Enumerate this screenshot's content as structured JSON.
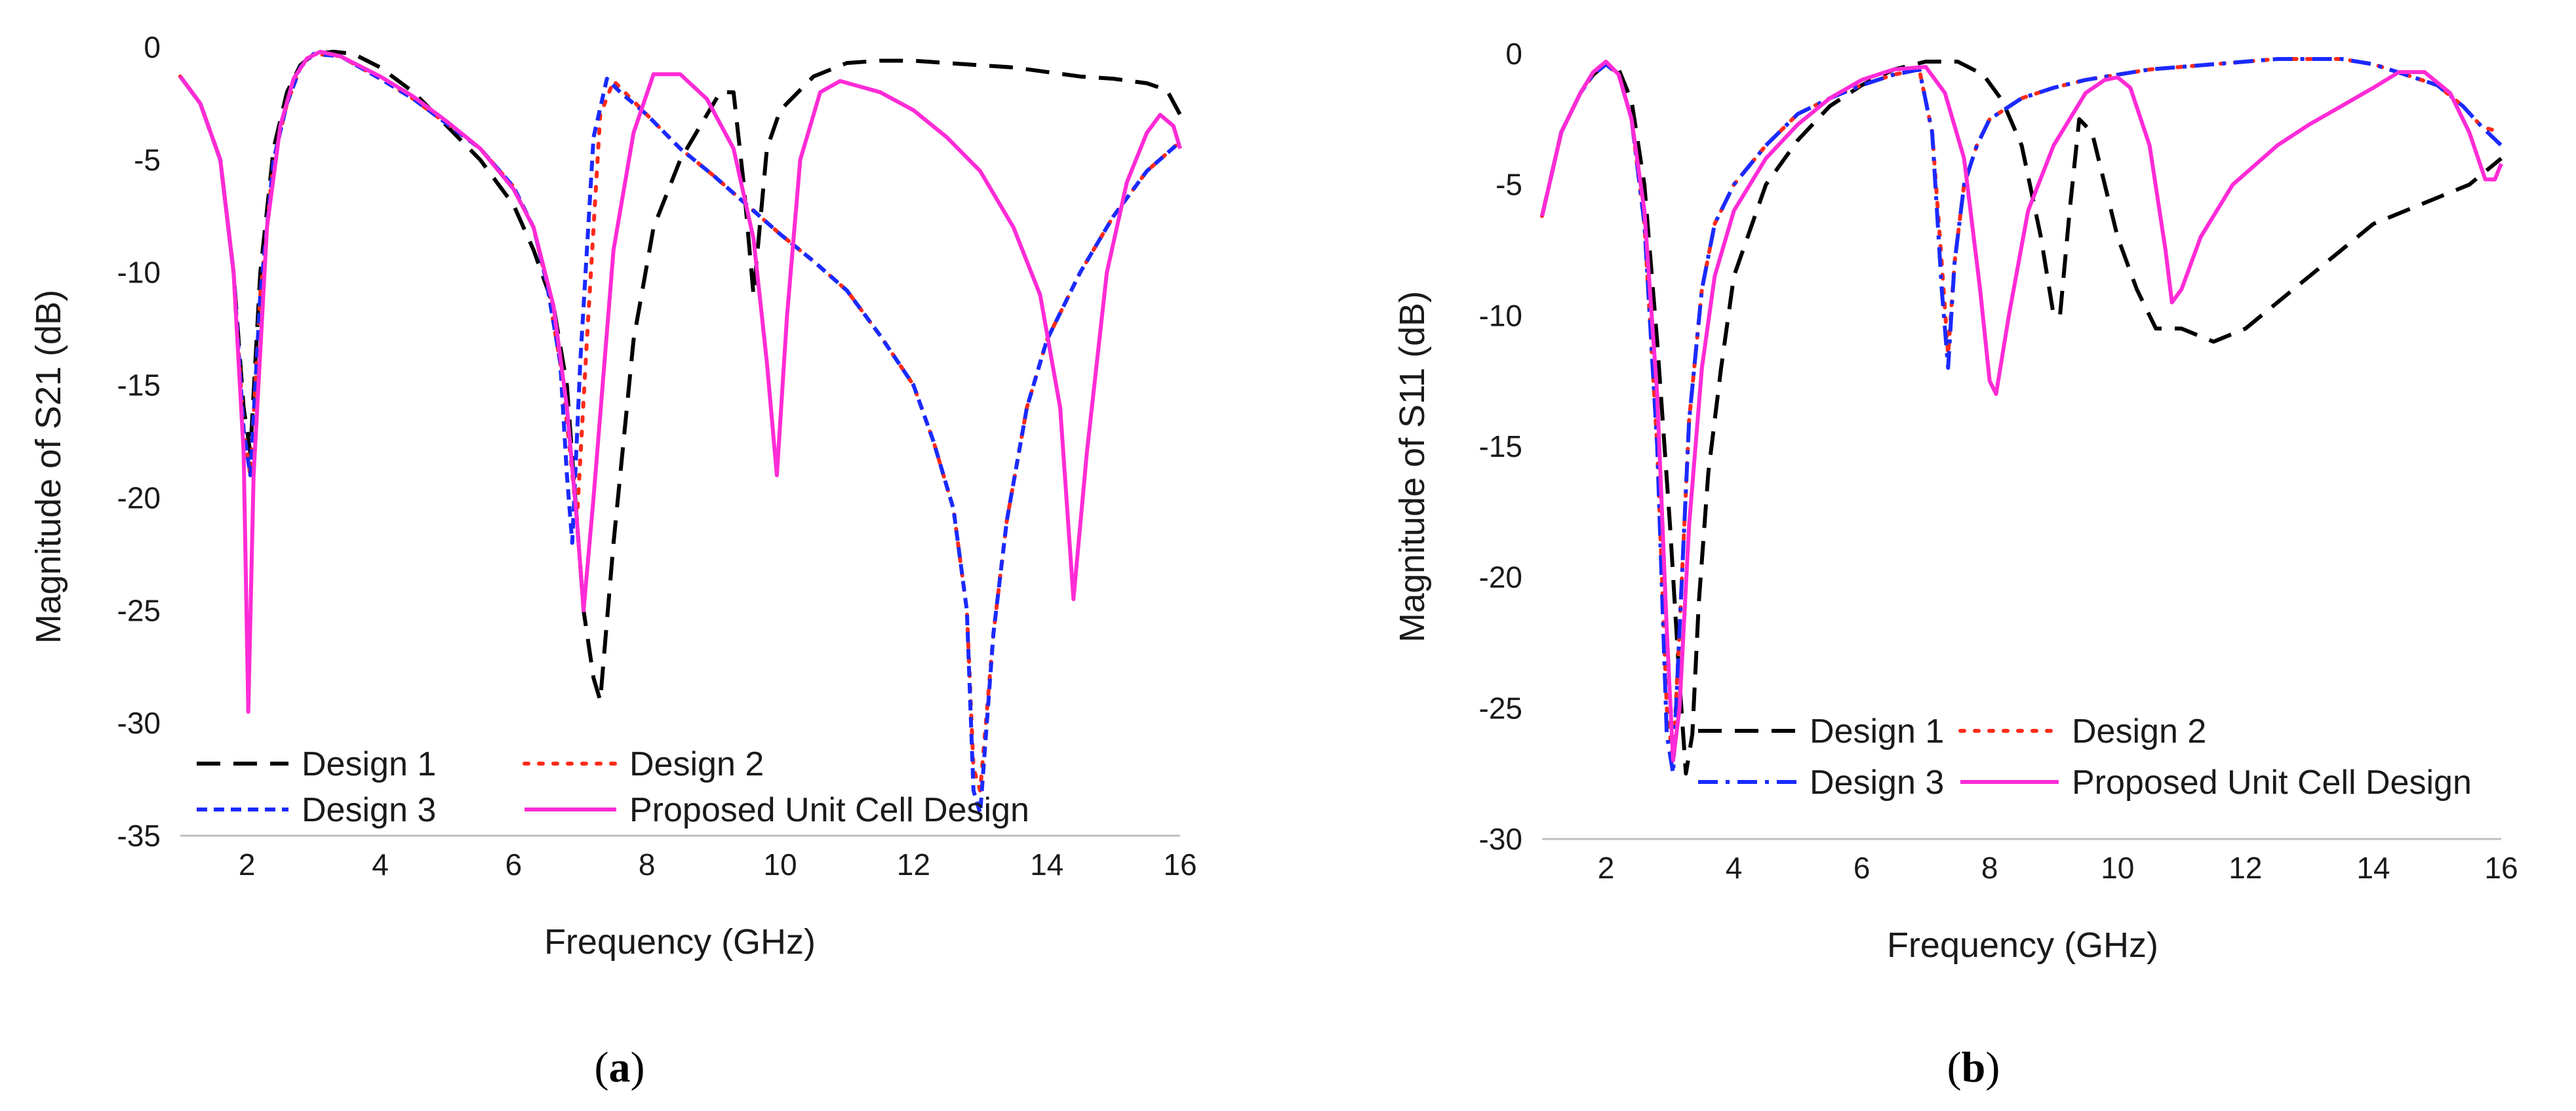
{
  "chart_data": [
    {
      "type": "line",
      "panel": "a",
      "xlabel": "Frequency (GHz)",
      "ylabel": "Magnitude of S21 (dB)",
      "xlim": [
        1,
        16
      ],
      "ylim": [
        -35,
        0
      ],
      "xticks": [
        2,
        4,
        6,
        8,
        10,
        12,
        14,
        16
      ],
      "yticks": [
        0,
        -5,
        -10,
        -15,
        -20,
        -25,
        -30,
        -35
      ],
      "series": [
        {
          "name": "Design 1",
          "color": "#000000",
          "style": "dash",
          "x": [
            1,
            1.3,
            1.6,
            1.8,
            1.95,
            2.05,
            2.2,
            2.4,
            2.6,
            2.8,
            3.0,
            3.3,
            3.6,
            4.0,
            4.5,
            5.0,
            5.5,
            6.0,
            6.3,
            6.6,
            6.8,
            6.95,
            7.05,
            7.2,
            7.3,
            7.5,
            7.8,
            8.1,
            8.5,
            8.9,
            9.1,
            9.3,
            9.45,
            9.6,
            9.8,
            10.0,
            10.5,
            11.0,
            11.5,
            12.0,
            12.5,
            13.0,
            13.5,
            14.0,
            14.5,
            15.0,
            15.5,
            15.8,
            16.0
          ],
          "y": [
            -1.3,
            -2.5,
            -5,
            -10,
            -16,
            -18,
            -10,
            -4.5,
            -2,
            -0.8,
            -0.3,
            -0.2,
            -0.3,
            -0.9,
            -2,
            -3.5,
            -5,
            -7,
            -9,
            -11.5,
            -15,
            -21,
            -25,
            -28,
            -29,
            -22,
            -13,
            -8,
            -5,
            -3,
            -2,
            -2,
            -6,
            -11,
            -4.5,
            -2.8,
            -1.3,
            -0.7,
            -0.6,
            -0.6,
            -0.7,
            -0.8,
            -0.9,
            -1.1,
            -1.3,
            -1.4,
            -1.6,
            -1.9,
            -3
          ]
        },
        {
          "name": "Design 2",
          "color": "#ff2a1a",
          "style": "dot",
          "x": [
            1,
            1.3,
            1.6,
            1.8,
            1.95,
            2.05,
            2.2,
            2.4,
            2.6,
            2.8,
            3.0,
            3.4,
            4.0,
            4.5,
            5.0,
            5.5,
            6.0,
            6.3,
            6.5,
            6.7,
            6.85,
            6.95,
            7.1,
            7.3,
            7.5,
            8.0,
            8.5,
            9.0,
            9.5,
            10.0,
            10.5,
            11.0,
            11.5,
            12.0,
            12.3,
            12.6,
            12.8,
            12.9,
            13.0,
            13.2,
            13.4,
            13.7,
            14.0,
            14.5,
            15.0,
            15.5,
            16.0
          ],
          "y": [
            -1.3,
            -2.5,
            -5,
            -10,
            -17,
            -19,
            -11,
            -5,
            -2.5,
            -0.9,
            -0.3,
            -0.4,
            -1.4,
            -2.3,
            -3.4,
            -4.5,
            -6.2,
            -8,
            -10.5,
            -14,
            -18,
            -21,
            -13,
            -3,
            -1.5,
            -3,
            -4.5,
            -5.7,
            -7,
            -8.3,
            -9.5,
            -10.8,
            -12.8,
            -15,
            -17.5,
            -20.5,
            -25,
            -32,
            -33,
            -26,
            -21,
            -16,
            -13,
            -10,
            -7.5,
            -5.5,
            -4.2
          ]
        },
        {
          "name": "Design 3",
          "color": "#1a2aff",
          "style": "shortdash",
          "x": [
            1,
            1.3,
            1.6,
            1.8,
            1.95,
            2.05,
            2.2,
            2.4,
            2.6,
            2.8,
            3.0,
            3.4,
            4.0,
            4.5,
            5.0,
            5.5,
            6.0,
            6.3,
            6.5,
            6.7,
            6.8,
            6.88,
            7.0,
            7.2,
            7.4,
            7.6,
            8.0,
            8.5,
            9.0,
            9.5,
            10.0,
            10.5,
            11.0,
            11.5,
            12.0,
            12.3,
            12.6,
            12.8,
            12.9,
            13.0,
            13.2,
            13.4,
            13.7,
            14.0,
            14.5,
            15.0,
            15.5,
            16.0
          ],
          "y": [
            -1.3,
            -2.5,
            -5,
            -10,
            -17,
            -19,
            -11,
            -5,
            -2.5,
            -0.9,
            -0.3,
            -0.4,
            -1.4,
            -2.3,
            -3.4,
            -4.5,
            -6.2,
            -8,
            -10.5,
            -14,
            -19,
            -22,
            -14,
            -4,
            -1.4,
            -2,
            -3,
            -4.5,
            -5.7,
            -7,
            -8.3,
            -9.5,
            -10.8,
            -12.8,
            -15,
            -17.5,
            -20.5,
            -25,
            -33,
            -34,
            -26,
            -21,
            -16,
            -13,
            -10,
            -7.5,
            -5.5,
            -4.2
          ]
        },
        {
          "name": "Proposed Unit Cell Design",
          "color": "#ff2bd6",
          "style": "solid",
          "x": [
            1,
            1.3,
            1.6,
            1.8,
            1.95,
            2.02,
            2.1,
            2.3,
            2.5,
            2.7,
            2.9,
            3.1,
            3.4,
            4.0,
            4.5,
            5.0,
            5.5,
            6.0,
            6.3,
            6.6,
            6.8,
            6.95,
            7.05,
            7.2,
            7.5,
            7.8,
            8.1,
            8.5,
            8.9,
            9.3,
            9.6,
            9.8,
            9.95,
            10.1,
            10.3,
            10.6,
            10.9,
            11.5,
            12.0,
            12.5,
            13.0,
            13.5,
            13.9,
            14.2,
            14.4,
            14.6,
            14.9,
            15.2,
            15.5,
            15.7,
            15.9,
            16.0
          ],
          "y": [
            -1.3,
            -2.5,
            -5,
            -10,
            -18,
            -29.5,
            -19,
            -8,
            -3.5,
            -1.4,
            -0.5,
            -0.2,
            -0.4,
            -1.3,
            -2.2,
            -3.3,
            -4.5,
            -6.3,
            -8,
            -11.5,
            -16,
            -21,
            -25,
            -20,
            -9,
            -3.8,
            -1.2,
            -1.2,
            -2.3,
            -4.5,
            -8.5,
            -14,
            -19,
            -12,
            -5,
            -2,
            -1.5,
            -2,
            -2.8,
            -4,
            -5.5,
            -8,
            -11,
            -16,
            -24.5,
            -18,
            -10,
            -6,
            -3.8,
            -3,
            -3.5,
            -4.5
          ]
        }
      ],
      "legend": {
        "position": "bottom-left",
        "entries": [
          "Design 1",
          "Design 2",
          "Design 3",
          "Proposed Unit Cell Design"
        ]
      }
    },
    {
      "type": "line",
      "panel": "b",
      "xlabel": "Frequency (GHz)",
      "ylabel": "Magnitude of S11 (dB)",
      "xlim": [
        1,
        16
      ],
      "ylim": [
        -30,
        0
      ],
      "xticks": [
        2,
        4,
        6,
        8,
        10,
        12,
        14,
        16
      ],
      "yticks": [
        0,
        -5,
        -10,
        -15,
        -20,
        -25,
        -30
      ],
      "series": [
        {
          "name": "Design 1",
          "color": "#000000",
          "style": "dash",
          "x": [
            1,
            1.3,
            1.6,
            1.8,
            2.0,
            2.2,
            2.4,
            2.6,
            2.8,
            3.0,
            3.15,
            3.25,
            3.35,
            3.45,
            3.6,
            3.8,
            4.0,
            4.5,
            5.0,
            5.5,
            6.0,
            6.5,
            7.0,
            7.5,
            7.9,
            8.2,
            8.5,
            8.8,
            9.0,
            9.1,
            9.25,
            9.4,
            9.6,
            9.8,
            10.0,
            10.3,
            10.6,
            11.0,
            11.5,
            12.0,
            12.5,
            13.0,
            13.5,
            14.0,
            14.5,
            15.0,
            15.5,
            16.0
          ],
          "y": [
            -6.2,
            -3,
            -1.5,
            -0.8,
            -0.4,
            -0.6,
            -1.8,
            -5,
            -11,
            -18,
            -24,
            -27.5,
            -26,
            -21,
            -16,
            -12,
            -8.5,
            -5,
            -3.3,
            -2,
            -1.2,
            -0.6,
            -0.3,
            -0.3,
            -0.8,
            -1.8,
            -3.5,
            -7,
            -10,
            -10,
            -6,
            -2.5,
            -3,
            -5,
            -7,
            -9,
            -10.5,
            -10.5,
            -11,
            -10.5,
            -9.5,
            -8.5,
            -7.5,
            -6.5,
            -6,
            -5.5,
            -5,
            -4
          ]
        },
        {
          "name": "Design 2",
          "color": "#ff2a1a",
          "style": "dot",
          "x": [
            1,
            1.3,
            1.6,
            1.8,
            2.0,
            2.2,
            2.4,
            2.6,
            2.8,
            2.95,
            3.05,
            3.15,
            3.3,
            3.5,
            3.7,
            4.0,
            4.5,
            5.0,
            5.5,
            6.0,
            6.5,
            6.9,
            7.1,
            7.25,
            7.35,
            7.45,
            7.6,
            7.8,
            8.0,
            8.5,
            9.0,
            9.5,
            10.0,
            10.5,
            11.0,
            11.5,
            12.0,
            12.5,
            13.0,
            13.5,
            14.0,
            14.5,
            15.0,
            15.4,
            15.7,
            16.0
          ],
          "y": [
            -6.2,
            -3,
            -1.5,
            -0.8,
            -0.4,
            -0.8,
            -2.5,
            -6.5,
            -15,
            -25,
            -27,
            -22,
            -14,
            -9,
            -6.5,
            -5,
            -3.5,
            -2.3,
            -1.7,
            -1.2,
            -0.8,
            -0.6,
            -3,
            -8,
            -11.5,
            -8,
            -5,
            -3.5,
            -2.5,
            -1.7,
            -1.3,
            -1,
            -0.8,
            -0.6,
            -0.5,
            -0.4,
            -0.3,
            -0.2,
            -0.2,
            -0.2,
            -0.4,
            -0.8,
            -1.2,
            -2,
            -2.8,
            -3
          ]
        },
        {
          "name": "Design 3",
          "color": "#1a2aff",
          "style": "dashdot",
          "x": [
            1,
            1.3,
            1.6,
            1.8,
            2.0,
            2.2,
            2.4,
            2.6,
            2.8,
            2.95,
            3.05,
            3.15,
            3.3,
            3.5,
            3.7,
            4.0,
            4.5,
            5.0,
            5.5,
            6.0,
            6.5,
            6.9,
            7.1,
            7.25,
            7.35,
            7.45,
            7.6,
            7.8,
            8.0,
            8.5,
            9.0,
            9.5,
            10.0,
            10.5,
            11.0,
            11.5,
            12.0,
            12.5,
            13.0,
            13.5,
            14.0,
            14.5,
            15.0,
            15.4,
            15.7,
            16.0
          ],
          "y": [
            -6.2,
            -3,
            -1.5,
            -0.8,
            -0.4,
            -0.8,
            -2.5,
            -6.5,
            -15,
            -26,
            -27.5,
            -22,
            -14,
            -9,
            -6.5,
            -5,
            -3.5,
            -2.3,
            -1.7,
            -1.2,
            -0.8,
            -0.6,
            -3,
            -9,
            -12,
            -8,
            -5,
            -3.5,
            -2.5,
            -1.7,
            -1.3,
            -1,
            -0.8,
            -0.6,
            -0.5,
            -0.4,
            -0.3,
            -0.2,
            -0.2,
            -0.2,
            -0.4,
            -0.8,
            -1.2,
            -2,
            -2.8,
            -3.5
          ]
        },
        {
          "name": "Proposed Unit Cell Design",
          "color": "#ff2bd6",
          "style": "solid",
          "x": [
            1,
            1.3,
            1.6,
            1.8,
            2.0,
            2.2,
            2.4,
            2.6,
            2.8,
            2.95,
            3.05,
            3.15,
            3.3,
            3.5,
            3.7,
            4.0,
            4.5,
            5.0,
            5.5,
            6.0,
            6.5,
            7.0,
            7.3,
            7.6,
            7.85,
            8.0,
            8.1,
            8.3,
            8.6,
            9.0,
            9.5,
            9.8,
            10.0,
            10.2,
            10.5,
            10.75,
            10.85,
            11.0,
            11.3,
            11.8,
            12.5,
            13.0,
            13.5,
            14.0,
            14.4,
            14.8,
            15.2,
            15.5,
            15.75,
            15.9,
            16.0
          ],
          "y": [
            -6.2,
            -3,
            -1.5,
            -0.7,
            -0.3,
            -0.8,
            -2.5,
            -6,
            -13,
            -22,
            -27,
            -25,
            -18,
            -12,
            -8.5,
            -6,
            -4,
            -2.7,
            -1.7,
            -1,
            -0.6,
            -0.5,
            -1.5,
            -4,
            -9,
            -12.5,
            -13,
            -10,
            -6,
            -3.5,
            -1.5,
            -1,
            -0.9,
            -1.3,
            -3.5,
            -7.5,
            -9.5,
            -9,
            -7,
            -5,
            -3.5,
            -2.7,
            -2,
            -1.3,
            -0.7,
            -0.7,
            -1.5,
            -3,
            -4.8,
            -4.8,
            -4.2
          ]
        }
      ],
      "legend": {
        "position": "bottom-left",
        "entries": [
          "Design 1",
          "Design 2",
          "Design 3",
          "Proposed Unit Cell Design"
        ]
      }
    }
  ],
  "panel_labels": [
    "(a)",
    "(b)"
  ]
}
